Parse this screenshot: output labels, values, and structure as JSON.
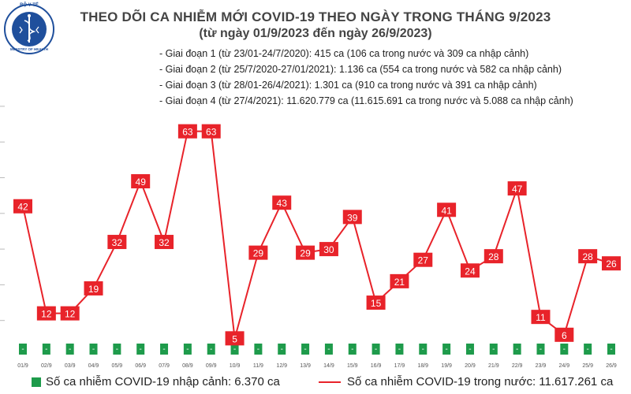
{
  "header": {
    "logo_text_top": "BỘ Y TẾ",
    "logo_text_bottom": "MINISTRY OF HEALTH",
    "title": "THEO DÕI CA NHIỄM MỚI COVID-19 THEO NGÀY TRONG THÁNG 9/2023",
    "subtitle": "(từ ngày 01/9/2023 đến ngày 26/9/2023)"
  },
  "phases": [
    "- Giai đoạn 1 (từ 23/01-24/7/2020): 415 ca (106 ca trong nước và 309 ca nhập cảnh)",
    "- Giai đoạn 2 (từ 25/7/2020-27/01/2021): 1.136 ca (554 ca trong nước và 582 ca nhập cảnh)",
    "- Giai đoạn 3 (từ 28/01-26/4/2021): 1.301 ca (910 ca trong nước và 391 ca nhập cảnh)",
    "- Giai đoạn 4 (từ 27/4/2021): 11.620.779 ca (11.615.691 ca trong nước và 5.088 ca nhập cảnh)"
  ],
  "legend": {
    "imported": "Số ca nhiễm COVID-19 nhập cảnh: 6.370 ca",
    "domestic": "Số ca nhiễm COVID-19 trong nước: 11.617.261 ca"
  },
  "colors": {
    "line": "#e8232a",
    "label_box": "#e8232a",
    "label_text": "#ffffff",
    "imported_bar": "#1e9b4b",
    "logo": "#1f4f9c"
  },
  "chart_data": {
    "type": "line",
    "categories": [
      "01/9",
      "02/9",
      "03/9",
      "04/9",
      "05/9",
      "06/9",
      "07/9",
      "08/9",
      "09/9",
      "10/9",
      "11/9",
      "12/9",
      "13/9",
      "14/9",
      "15/9",
      "16/9",
      "17/9",
      "18/9",
      "19/9",
      "20/9",
      "21/9",
      "22/9",
      "23/9",
      "24/9",
      "25/9",
      "26/9"
    ],
    "series": [
      {
        "values": [
          42,
          12,
          12,
          19,
          32,
          49,
          32,
          63,
          63,
          5,
          29,
          43,
          29,
          30,
          39,
          15,
          21,
          27,
          41,
          24,
          28,
          47,
          11,
          6,
          28,
          26
        ]
      },
      {
        "values": [
          0,
          0,
          0,
          0,
          0,
          0,
          0,
          0,
          0,
          0,
          0,
          0,
          0,
          0,
          0,
          0,
          0,
          0,
          0,
          0,
          0,
          0,
          0,
          0,
          0,
          0
        ],
        "point_labels": [
          "-",
          "-",
          "-",
          "-",
          "-",
          "-",
          "-",
          "-",
          "-",
          "-",
          "-",
          "-",
          "-",
          "-",
          "-",
          "-",
          "-",
          "-",
          "-",
          "-",
          "-",
          "-",
          "-",
          "-",
          "-",
          "-"
        ]
      }
    ],
    "ylim": [
      0,
      70
    ],
    "grid": false
  }
}
